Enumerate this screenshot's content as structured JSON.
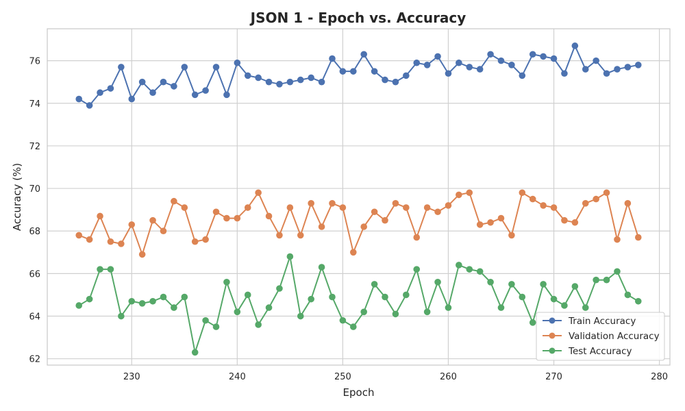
{
  "chart_data": {
    "type": "line",
    "title": "JSON 1 - Epoch vs. Accuracy",
    "xlabel": "Epoch",
    "ylabel": "Accuracy (%)",
    "xlim": [
      222,
      281
    ],
    "ylim": [
      61.7,
      77.5
    ],
    "xticks": [
      230,
      240,
      250,
      260,
      270,
      280
    ],
    "yticks": [
      62,
      64,
      66,
      68,
      70,
      72,
      74,
      76
    ],
    "grid": true,
    "legend_position": "bottom-right",
    "x": [
      225,
      226,
      227,
      228,
      229,
      230,
      231,
      232,
      233,
      234,
      235,
      236,
      237,
      238,
      239,
      240,
      241,
      242,
      243,
      244,
      245,
      246,
      247,
      248,
      249,
      250,
      251,
      252,
      253,
      254,
      255,
      256,
      257,
      258,
      259,
      260,
      261,
      262,
      263,
      264,
      265,
      266,
      267,
      268,
      269,
      270,
      271,
      272,
      273,
      274,
      275,
      276,
      277,
      278
    ],
    "series": [
      {
        "name": "Train Accuracy",
        "color": "#4c72b0",
        "values": [
          74.2,
          73.9,
          74.5,
          74.7,
          75.7,
          74.2,
          75.0,
          74.5,
          75.0,
          74.8,
          75.7,
          74.4,
          74.6,
          75.7,
          74.4,
          75.9,
          75.3,
          75.2,
          75.0,
          74.9,
          75.0,
          75.1,
          75.2,
          75.0,
          76.1,
          75.5,
          75.5,
          76.3,
          75.5,
          75.1,
          75.0,
          75.3,
          75.9,
          75.8,
          76.2,
          75.4,
          75.9,
          75.7,
          75.6,
          76.3,
          76.0,
          75.8,
          75.3,
          76.3,
          76.2,
          76.1,
          75.4,
          76.7,
          75.6,
          76.0,
          75.4,
          75.6,
          75.7,
          75.8
        ]
      },
      {
        "name": "Validation Accuracy",
        "color": "#dd8452",
        "values": [
          67.8,
          67.6,
          68.7,
          67.5,
          67.4,
          68.3,
          66.9,
          68.5,
          68.0,
          69.4,
          69.1,
          67.5,
          67.6,
          68.9,
          68.6,
          68.6,
          69.1,
          69.8,
          68.7,
          67.8,
          69.1,
          67.8,
          69.3,
          68.2,
          69.3,
          69.1,
          67.0,
          68.2,
          68.9,
          68.5,
          69.3,
          69.1,
          67.7,
          69.1,
          68.9,
          69.2,
          69.7,
          69.8,
          68.3,
          68.4,
          68.6,
          67.8,
          69.8,
          69.5,
          69.2,
          69.1,
          68.5,
          68.4,
          69.3,
          69.5,
          69.8,
          67.6,
          69.3,
          67.7
        ]
      },
      {
        "name": "Test Accuracy",
        "color": "#55a868",
        "values": [
          64.5,
          64.8,
          66.2,
          66.2,
          64.0,
          64.7,
          64.6,
          64.7,
          64.9,
          64.4,
          64.9,
          62.3,
          63.8,
          63.5,
          65.6,
          64.2,
          65.0,
          63.6,
          64.4,
          65.3,
          66.8,
          64.0,
          64.8,
          66.3,
          64.9,
          63.8,
          63.5,
          64.2,
          65.5,
          64.9,
          64.1,
          65.0,
          66.2,
          64.2,
          65.6,
          64.4,
          66.4,
          66.2,
          66.1,
          65.6,
          64.4,
          65.5,
          64.9,
          63.7,
          65.5,
          64.8,
          64.5,
          65.4,
          64.4,
          65.7,
          65.7,
          66.1,
          65.0,
          64.7
        ]
      }
    ]
  }
}
